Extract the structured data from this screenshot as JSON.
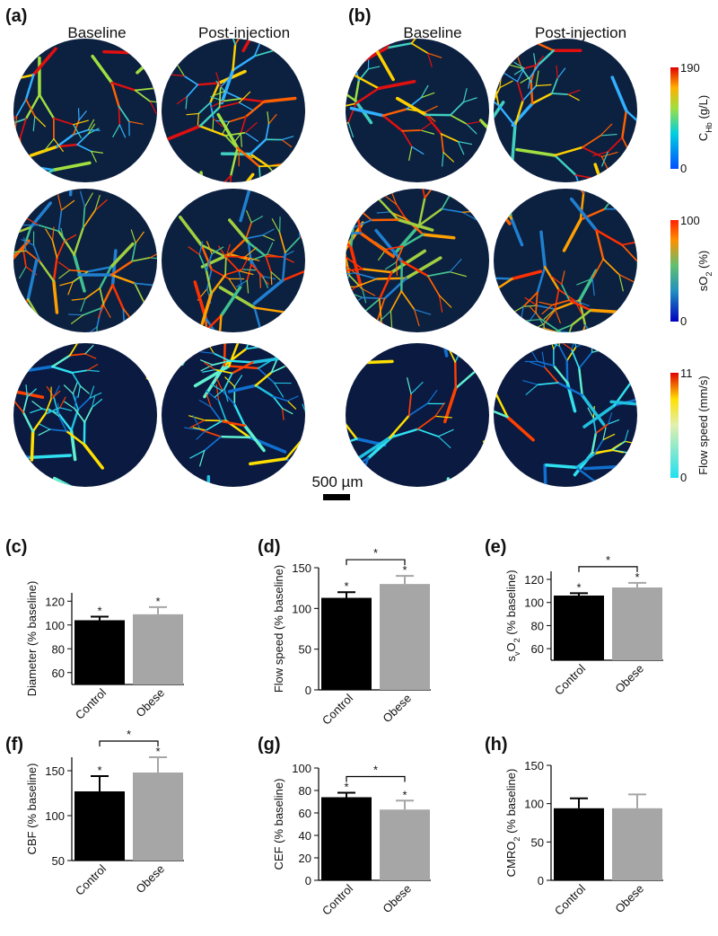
{
  "figure": {
    "panel_labels": [
      "(a)",
      "(b)"
    ],
    "column_titles": [
      "Baseline",
      "Post-injection",
      "Baseline",
      "Post-injection"
    ],
    "scale_bar": "500 µm",
    "colorbars": [
      {
        "min": 0,
        "max": 190,
        "label": [
          {
            "text": "C"
          },
          {
            "sub": "Hb"
          },
          {
            "text": " (g/L)"
          }
        ]
      },
      {
        "min": 0,
        "max": 100,
        "label": [
          {
            "text": "sO"
          },
          {
            "sub": "2"
          },
          {
            "text": " (%)"
          }
        ]
      },
      {
        "min": 0,
        "max": 11,
        "label": [
          {
            "text": "Flow speed   (mm/s)"
          }
        ]
      }
    ]
  },
  "chart_data": [
    {
      "type": "bar",
      "panel": "(c)",
      "ylabel": "Diameter (% baseline)",
      "categories": [
        "Control",
        "Obese"
      ],
      "values": [
        104,
        109
      ],
      "errors": [
        3,
        6
      ],
      "colors": [
        "#000000",
        "#a6a6a6"
      ],
      "ylim": [
        50,
        127
      ],
      "yticks": [
        60,
        80,
        100,
        120
      ],
      "value_marks": [
        "*",
        "*"
      ]
    },
    {
      "type": "bar",
      "panel": "(d)",
      "ylabel": "Flow speed (% baseline)",
      "categories": [
        "Control",
        "Obese"
      ],
      "values": [
        113,
        130
      ],
      "errors": [
        7,
        10
      ],
      "colors": [
        "#000000",
        "#a6a6a6"
      ],
      "ylim": [
        0,
        150
      ],
      "yticks": [
        0,
        50,
        100,
        150
      ],
      "value_marks": [
        "*",
        "*"
      ],
      "bracket": "*"
    },
    {
      "type": "bar",
      "panel": "(e)",
      "ylabel": [
        {
          "text": "s"
        },
        {
          "sub": "v"
        },
        {
          "text": "O"
        },
        {
          "sub": "2"
        },
        {
          "text": " (% baseline)"
        }
      ],
      "categories": [
        "Control",
        "Obese"
      ],
      "values": [
        106,
        113
      ],
      "errors": [
        2,
        4
      ],
      "colors": [
        "#000000",
        "#a6a6a6"
      ],
      "ylim": [
        50,
        127
      ],
      "yticks": [
        60,
        80,
        100,
        120
      ],
      "value_marks": [
        "*",
        "*"
      ],
      "bracket": "*"
    },
    {
      "type": "bar",
      "panel": "(f)",
      "ylabel": "CBF (% baseline)",
      "categories": [
        "Control",
        "Obese"
      ],
      "values": [
        127,
        148
      ],
      "errors": [
        17,
        17
      ],
      "colors": [
        "#000000",
        "#a6a6a6"
      ],
      "ylim": [
        50,
        165
      ],
      "yticks": [
        50,
        100,
        150
      ],
      "value_marks": [
        "*",
        "*"
      ],
      "bracket": "*"
    },
    {
      "type": "bar",
      "panel": "(g)",
      "ylabel": "CEF (% baseline)",
      "categories": [
        "Control",
        "Obese"
      ],
      "values": [
        74,
        63
      ],
      "errors": [
        4,
        8
      ],
      "colors": [
        "#000000",
        "#a6a6a6"
      ],
      "ylim": [
        0,
        100
      ],
      "yticks": [
        0,
        20,
        40,
        60,
        80,
        100
      ],
      "value_marks": [
        "*",
        "*"
      ],
      "bracket": "*"
    },
    {
      "type": "bar",
      "panel": "(h)",
      "ylabel": [
        {
          "text": "CMRO"
        },
        {
          "sub": "2"
        },
        {
          "text": " (% baseline)"
        }
      ],
      "categories": [
        "Control",
        "Obese"
      ],
      "values": [
        94,
        94
      ],
      "errors": [
        13,
        18
      ],
      "colors": [
        "#000000",
        "#a6a6a6"
      ],
      "ylim": [
        0,
        150
      ],
      "yticks": [
        0,
        50,
        100,
        150
      ]
    }
  ]
}
